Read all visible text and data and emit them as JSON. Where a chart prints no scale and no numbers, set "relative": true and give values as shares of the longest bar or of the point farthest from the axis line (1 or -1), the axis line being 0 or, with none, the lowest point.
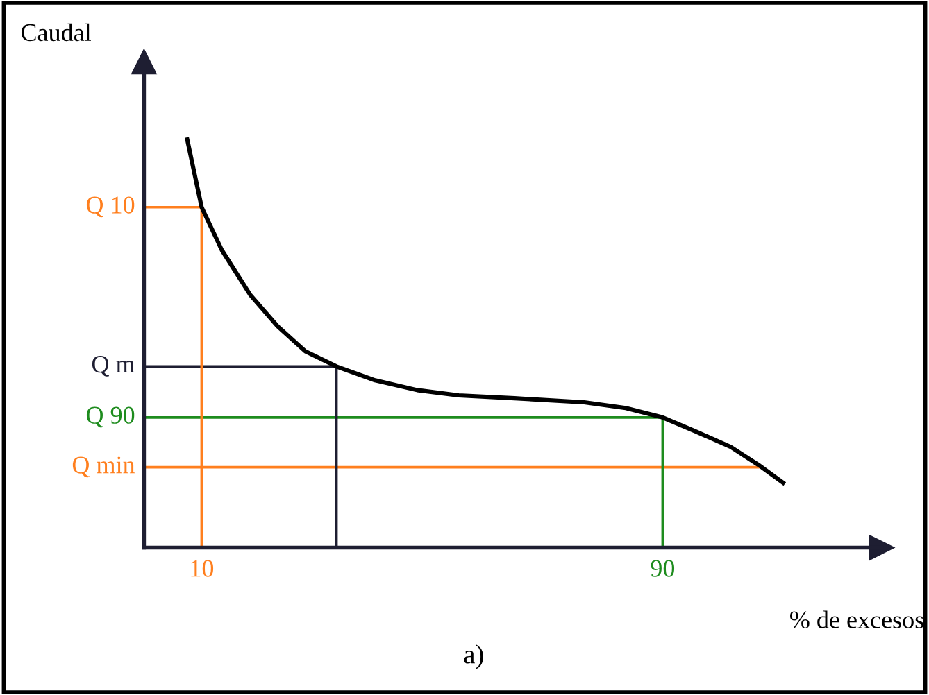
{
  "chart_data": {
    "type": "line",
    "relative": true,
    "ylabel": "Caudal",
    "xlabel": "% de excesos",
    "annotations": [
      "a)"
    ],
    "x": [
      7.5,
      10,
      13.5,
      18.4,
      23.2,
      28.0,
      33.4,
      40.1,
      47.4,
      54.6,
      64.3,
      76.4,
      83.6,
      90,
      95.7,
      101.8,
      106.6,
      110.9
    ],
    "series": [
      {
        "color": "#000000",
        "values": [
          1.0,
          0.834,
          0.729,
          0.62,
          0.542,
          0.481,
          0.444,
          0.41,
          0.386,
          0.373,
          0.366,
          0.356,
          0.342,
          0.319,
          0.285,
          0.247,
          0.203,
          0.159
        ]
      }
    ],
    "xlim": [
      0,
      128
    ],
    "xticks": [
      10,
      90
    ],
    "ref_lines": [
      {
        "axis": "y",
        "value": 0.834,
        "label": "Q 10",
        "color": "#ff7f1e"
      },
      {
        "axis": "y",
        "value": 0.444,
        "label": "Q m",
        "color": "#1e1e32"
      },
      {
        "axis": "y",
        "value": 0.319,
        "label": "Q 90",
        "color": "#1e8c1e"
      },
      {
        "axis": "y",
        "value": 0.197,
        "label": "Q min",
        "color": "#ff7f1e"
      },
      {
        "axis": "x",
        "value": 10,
        "color": "#ff7f1e"
      },
      {
        "axis": "x",
        "value": 33.4,
        "color": "#1e1e32"
      },
      {
        "axis": "x",
        "value": 90,
        "color": "#1e8c1e"
      }
    ],
    "grid": false,
    "legend": false,
    "marker": "none",
    "line_style": "solid"
  }
}
